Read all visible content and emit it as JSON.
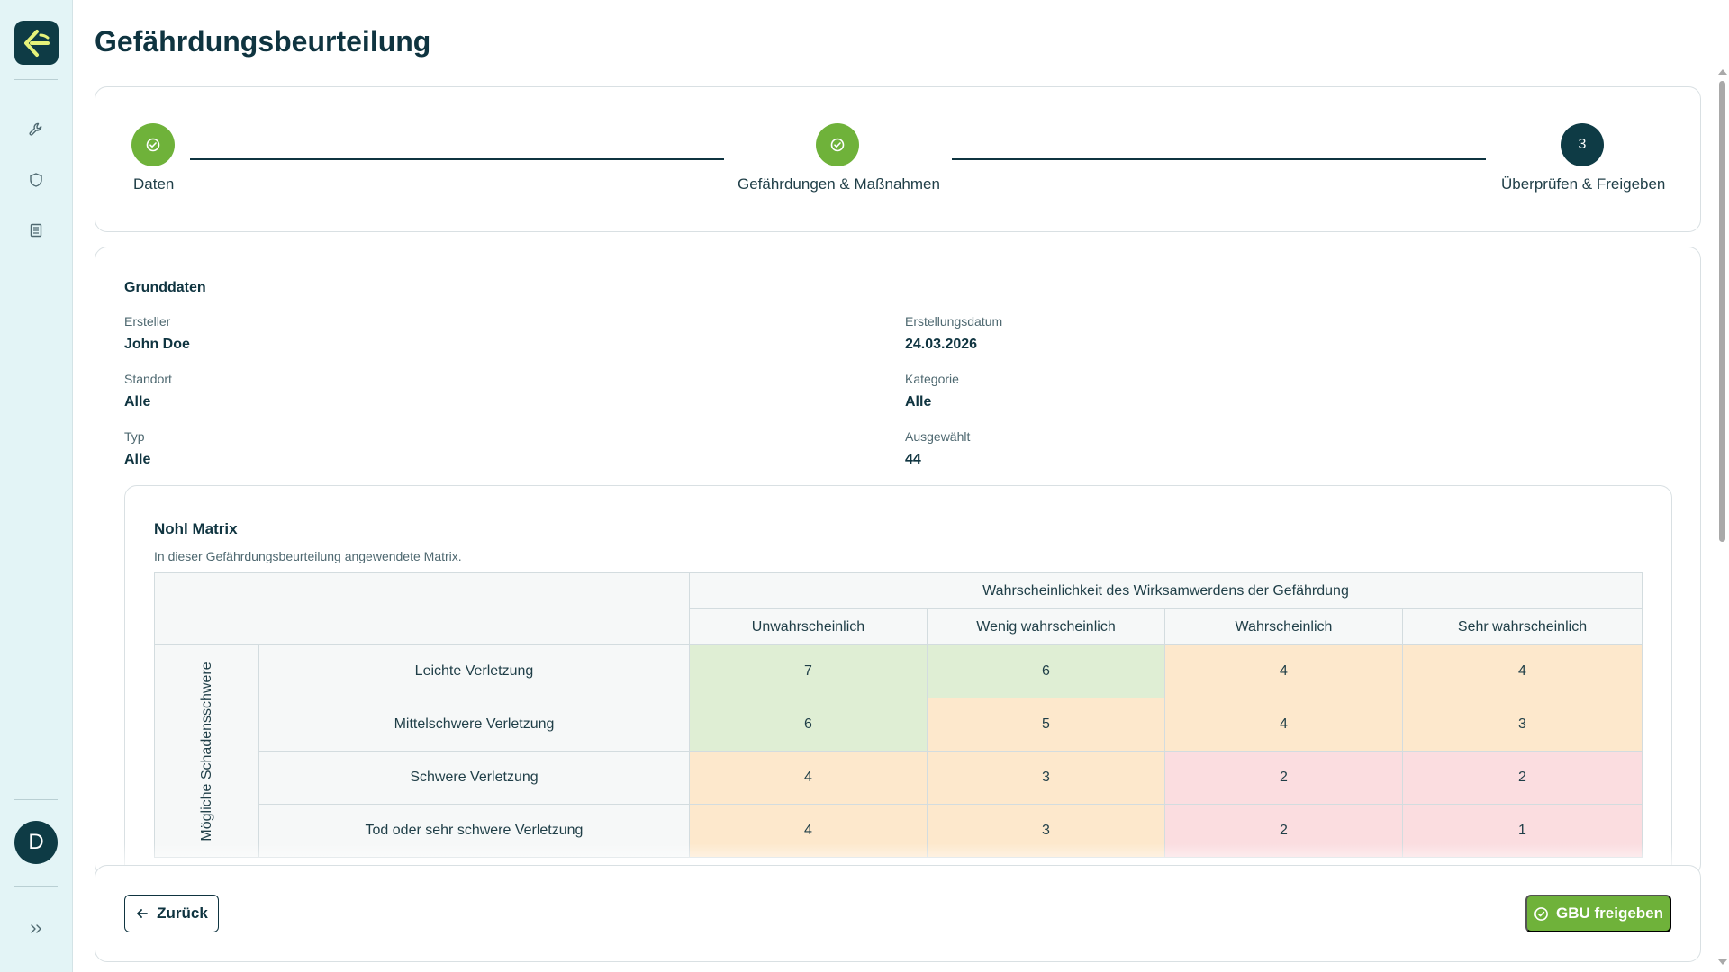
{
  "page": {
    "title": "Gefährdungsbeurteilung"
  },
  "sidebar": {
    "items": [
      {
        "icon": "wrench-icon"
      },
      {
        "icon": "shield-icon"
      },
      {
        "icon": "document-icon"
      }
    ],
    "avatar_initial": "D",
    "expand_icon": "chevron-double-right-icon"
  },
  "stepper": {
    "steps": [
      {
        "label": "Daten",
        "status": "done"
      },
      {
        "label": "Gefährdungen & Maßnahmen",
        "status": "done"
      },
      {
        "label": "Überprüfen & Freigeben",
        "status": "current",
        "number": "3"
      }
    ]
  },
  "grunddaten": {
    "title": "Grunddaten",
    "fields": {
      "ersteller": {
        "label": "Ersteller",
        "value": "John Doe"
      },
      "erstellungsdatum": {
        "label": "Erstellungsdatum",
        "value": "24.03.2026"
      },
      "standort": {
        "label": "Standort",
        "value": "Alle"
      },
      "kategorie": {
        "label": "Kategorie",
        "value": "Alle"
      },
      "typ": {
        "label": "Typ",
        "value": "Alle"
      },
      "ausgewaehlt": {
        "label": "Ausgewählt",
        "value": "44"
      }
    }
  },
  "matrix": {
    "title": "Nohl Matrix",
    "subtitle": "In dieser Gefährdungsbeurteilung angewendete Matrix.",
    "column_group_header": "Wahrscheinlichkeit des Wirksamwerdens der Gefährdung",
    "columns": [
      "Unwahrscheinlich",
      "Wenig wahrscheinlich",
      "Wahrscheinlich",
      "Sehr wahrscheinlich"
    ],
    "row_axis_label": "Mögliche Schadensschwere",
    "rows": [
      {
        "label": "Leichte Verletzung",
        "values": [
          "7",
          "6",
          "4",
          "4"
        ]
      },
      {
        "label": "Mittelschwere Verletzung",
        "values": [
          "6",
          "5",
          "4",
          "3"
        ]
      },
      {
        "label": "Schwere Verletzung",
        "values": [
          "4",
          "3",
          "2",
          "2"
        ]
      },
      {
        "label": "Tod oder sehr schwere Verletzung",
        "values": [
          "4",
          "3",
          "2",
          "1"
        ]
      }
    ],
    "colors": {
      "low": "#dfeed4",
      "medium": "#fde8cc",
      "high": "#fbdde0"
    }
  },
  "footer": {
    "back_label": "Zurück",
    "release_label": "GBU freigeben"
  },
  "colors": {
    "primary": "#0e3b45",
    "success": "#6fb23a",
    "sidebar_bg": "#e3f4f6"
  }
}
